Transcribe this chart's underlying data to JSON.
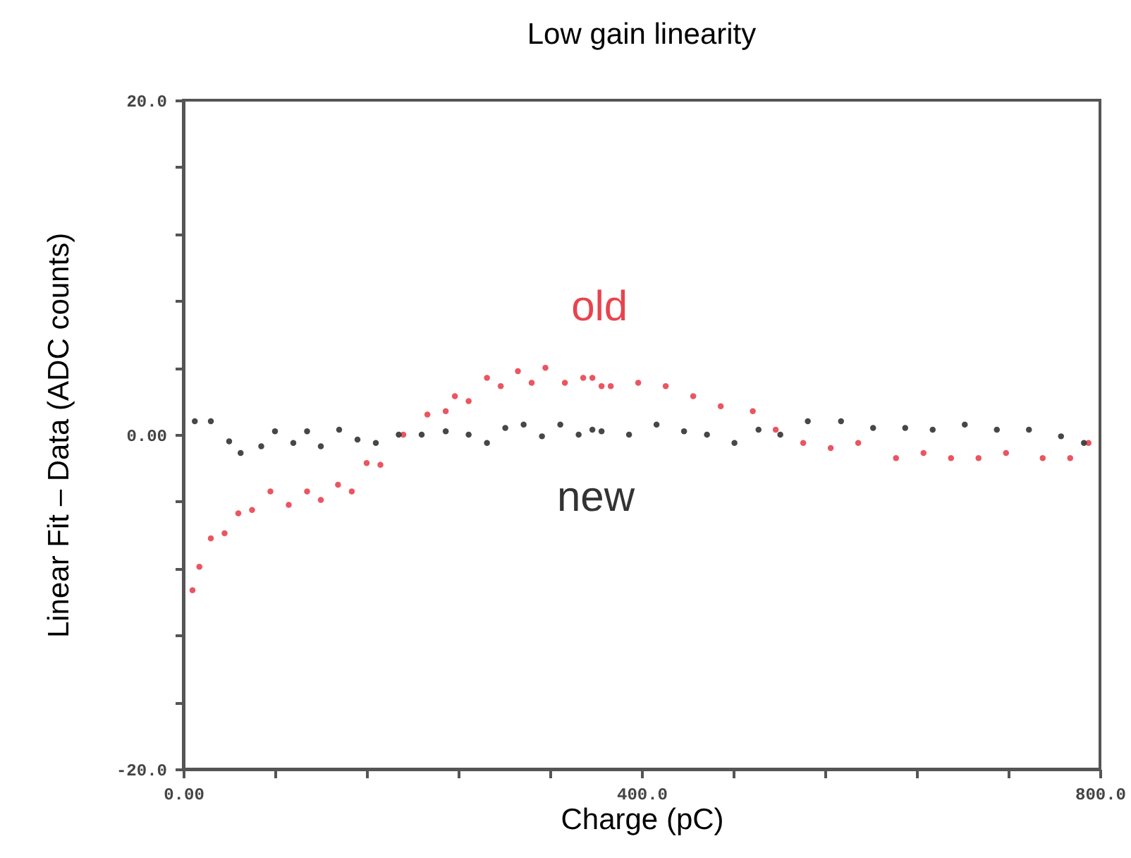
{
  "chart_data": {
    "type": "scatter",
    "title": "Low gain linearity",
    "xlabel": "Charge (pC)",
    "ylabel": "Linear Fit – Data (ADC counts)",
    "xlim": [
      0,
      800
    ],
    "ylim": [
      -20,
      20
    ],
    "xticks": [
      {
        "value": 0,
        "label": "0.00"
      },
      {
        "value": 80,
        "label": null
      },
      {
        "value": 160,
        "label": null
      },
      {
        "value": 240,
        "label": null
      },
      {
        "value": 320,
        "label": null
      },
      {
        "value": 400,
        "label": "400.0"
      },
      {
        "value": 480,
        "label": null
      },
      {
        "value": 560,
        "label": null
      },
      {
        "value": 640,
        "label": null
      },
      {
        "value": 720,
        "label": null
      },
      {
        "value": 800,
        "label": "800.0"
      }
    ],
    "yticks": [
      {
        "value": -20,
        "label": "-20.0"
      },
      {
        "value": -16,
        "label": null
      },
      {
        "value": -12,
        "label": null
      },
      {
        "value": -8,
        "label": null
      },
      {
        "value": -4,
        "label": null
      },
      {
        "value": 0,
        "label": "0.00"
      },
      {
        "value": 4,
        "label": null
      },
      {
        "value": 8,
        "label": null
      },
      {
        "value": 12,
        "label": null
      },
      {
        "value": 16,
        "label": null
      },
      {
        "value": 20,
        "label": "20.0"
      }
    ],
    "grid": false,
    "marker": "circle",
    "series": [
      {
        "name": "old",
        "color": "#e8434f",
        "x": [
          8,
          14,
          24,
          36,
          48,
          60,
          76,
          92,
          108,
          120,
          135,
          147,
          160,
          172,
          192,
          213,
          229,
          237,
          249,
          265,
          277,
          292,
          304,
          316,
          333,
          349,
          357,
          365,
          373,
          397,
          421,
          445,
          469,
          497,
          517,
          541,
          565,
          589,
          622,
          646,
          670,
          694,
          718,
          750,
          774,
          790
        ],
        "values": [
          -9.3,
          -7.9,
          -6.2,
          -5.9,
          -4.7,
          -4.5,
          -3.4,
          -4.2,
          -3.4,
          -3.9,
          -3.0,
          -3.4,
          -1.7,
          -1.8,
          0,
          1.2,
          1.4,
          2.3,
          2.0,
          3.4,
          2.9,
          3.8,
          3.1,
          4.0,
          3.1,
          3.4,
          3.4,
          2.9,
          2.9,
          3.1,
          2.9,
          2.3,
          1.7,
          1.4,
          0.3,
          -0.5,
          -0.8,
          -0.5,
          -1.4,
          -1.1,
          -1.4,
          -1.4,
          -1.1,
          -1.4,
          -1.4,
          -0.5
        ]
      },
      {
        "name": "new",
        "color": "#333333",
        "x": [
          10,
          24,
          40,
          50,
          68,
          80,
          96,
          108,
          120,
          136,
          152,
          168,
          188,
          208,
          229,
          249,
          265,
          281,
          297,
          313,
          329,
          345,
          357,
          365,
          389,
          413,
          437,
          457,
          481,
          502,
          521,
          545,
          574,
          602,
          630,
          654,
          682,
          710,
          738,
          766,
          786
        ],
        "values": [
          0.8,
          0.8,
          -0.4,
          -1.1,
          -0.7,
          0.2,
          -0.5,
          0.2,
          -0.7,
          0.3,
          -0.3,
          -0.5,
          0,
          0,
          0.2,
          0,
          -0.5,
          0.4,
          0.6,
          -0.1,
          0.6,
          0,
          0.3,
          0.2,
          0,
          0.6,
          0.2,
          0,
          -0.5,
          0.3,
          0,
          0.8,
          0.8,
          0.4,
          0.4,
          0.3,
          0.6,
          0.3,
          0.3,
          -0.1,
          -0.5
        ]
      }
    ]
  }
}
